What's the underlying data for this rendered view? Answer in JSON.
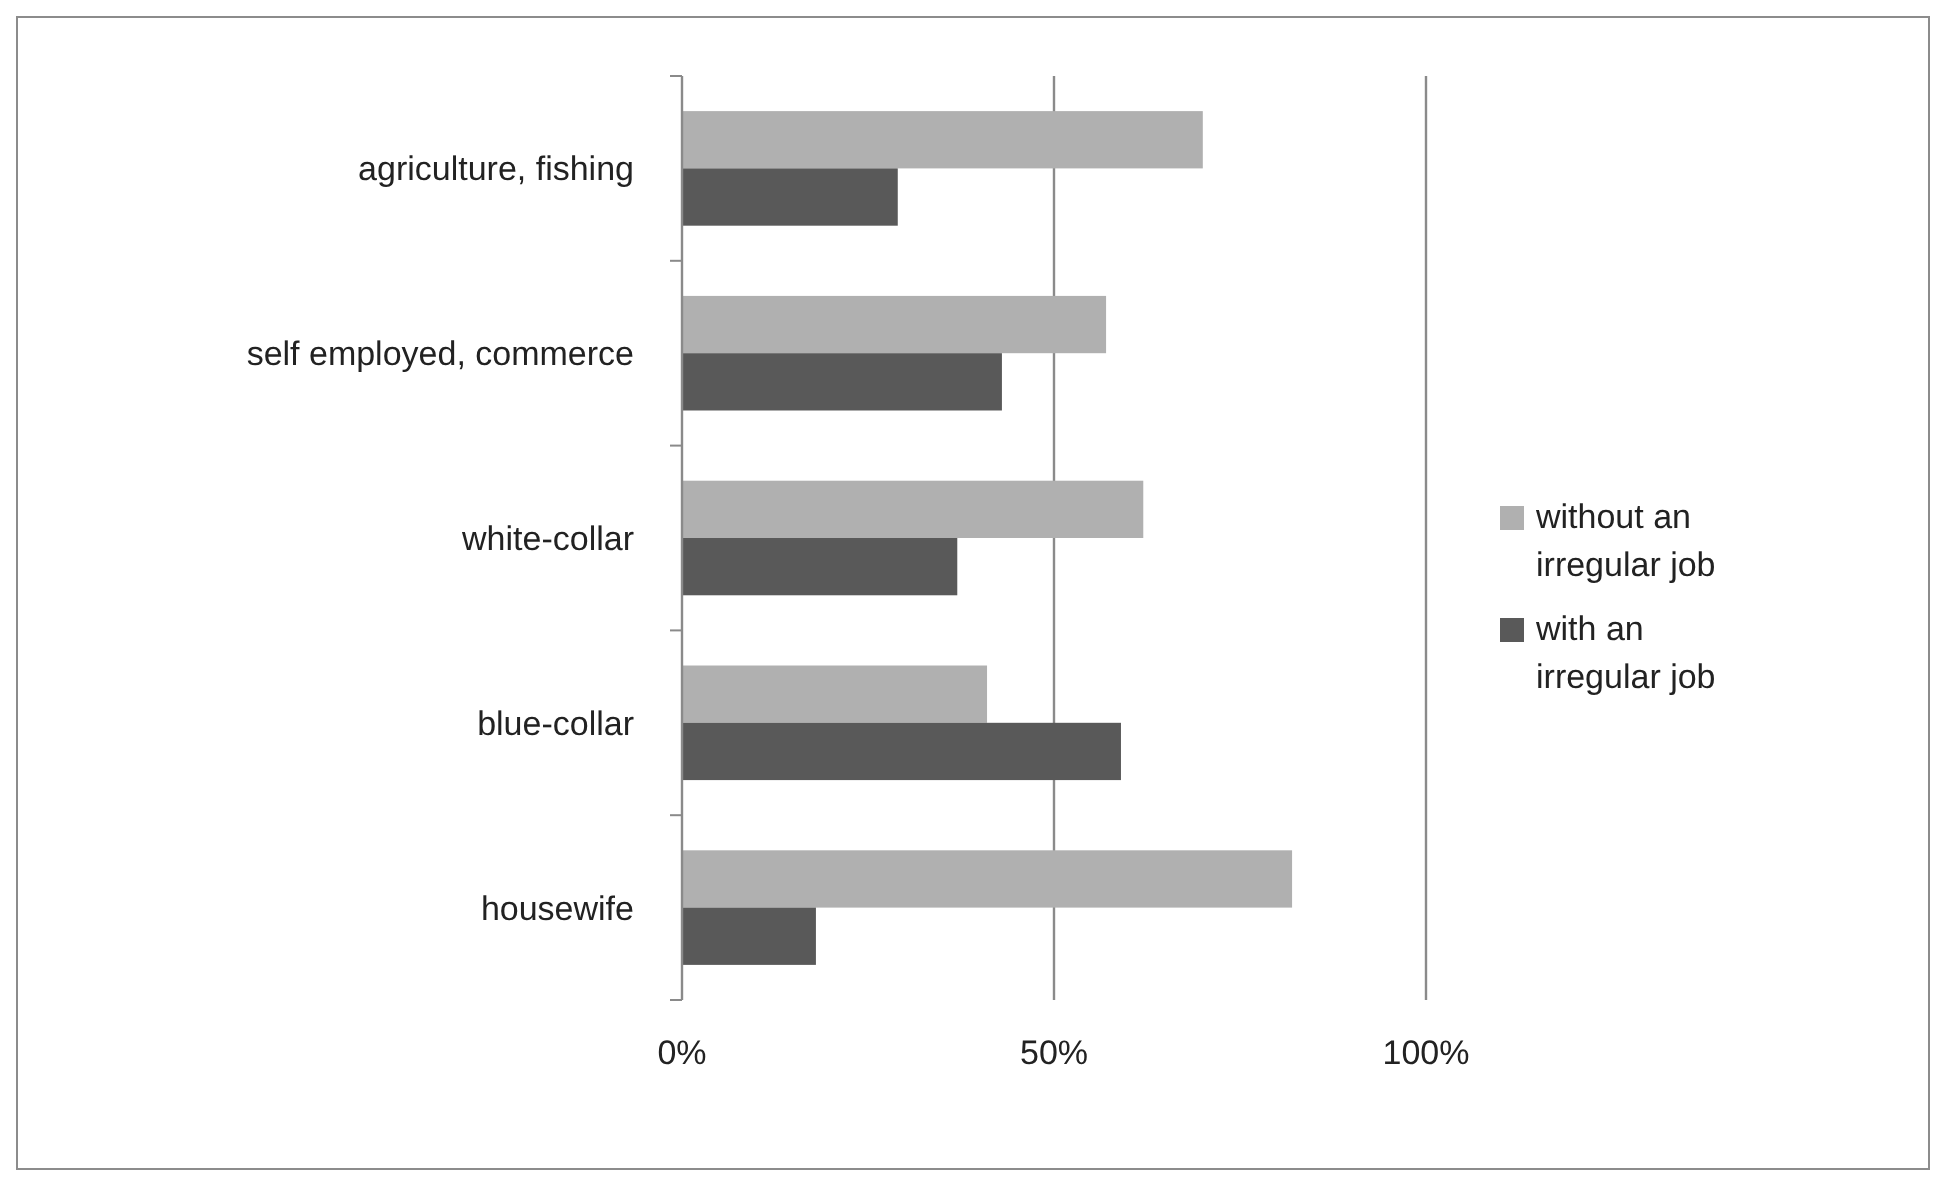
{
  "chart_data": {
    "type": "bar",
    "orientation": "horizontal",
    "categories": [
      "agriculture, fishing",
      "self employed, commerce",
      "white-collar",
      "blue-collar",
      "housewife"
    ],
    "series": [
      {
        "name": "without an irregular job",
        "color": "#b0b0b0",
        "values": [
          70,
          57,
          62,
          41,
          82
        ]
      },
      {
        "name": "with an irregular job",
        "color": "#595959",
        "values": [
          29,
          43,
          37,
          59,
          18
        ]
      }
    ],
    "xlim": [
      0,
      100
    ],
    "xticks": [
      {
        "value": 0,
        "label": "0%"
      },
      {
        "value": 50,
        "label": "50%"
      },
      {
        "value": 100,
        "label": "100%"
      }
    ],
    "grid": "x",
    "legend": "right"
  }
}
